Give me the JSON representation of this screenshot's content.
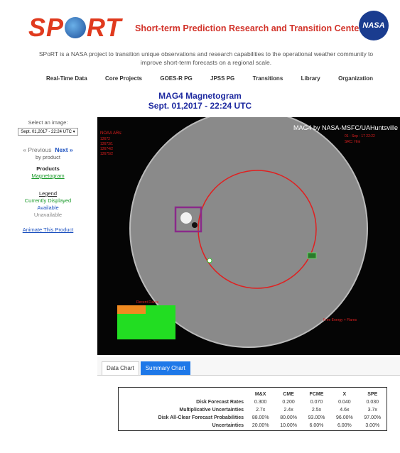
{
  "header": {
    "logo": [
      "SP",
      "RT"
    ],
    "center_name": "Short-term Prediction Research and Transition Center",
    "nasa": "NASA",
    "description": "SPoRT is a NASA project to transition unique observations and research capabilities to the operational weather community to improve short-term forecasts on a regional scale."
  },
  "nav": [
    "Real-Time Data",
    "Core Projects",
    "GOES-R PG",
    "JPSS PG",
    "Transitions",
    "Library",
    "Organization"
  ],
  "page": {
    "title": "MAG4 Magnetogram",
    "subtitle": "Sept. 01,2017 - 22:24 UTC"
  },
  "sidebar": {
    "select_label": "Select an image:",
    "selected": "Sept. 01,2017 - 22:24 UTC",
    "previous": "« Previous",
    "next": "Next »",
    "by_product": "by product",
    "products_heading": "Products",
    "product": "Magnetogram",
    "legend_heading": "Legend",
    "legend": [
      "Currently Displayed",
      "Available",
      "Unavailable"
    ],
    "animate": "Animate This Product"
  },
  "image": {
    "credit": "MAG4 by NASA-MSFC/UAHuntsville",
    "date": "01 - Sep - 17 22:22",
    "source": "SRC: Hmi",
    "ars_heading": "NOAA ARs:",
    "ars": [
      "12672",
      "12673/1",
      "12674/2",
      "12675/2"
    ],
    "inset_title": "Recent Flares",
    "flares_label": "Free Energy + Flares"
  },
  "tabs": [
    "Data Chart",
    "Summary Chart"
  ],
  "table": {
    "columns": [
      "M&X",
      "CME",
      "FCME",
      "X",
      "SPE"
    ],
    "rows": [
      {
        "label": "Disk Forecast Rates",
        "cells": [
          "0.300",
          "0.200",
          "0.070",
          "0.040",
          "0.030"
        ]
      },
      {
        "label": "Multiplicative Uncertainties",
        "cells": [
          "2.7x",
          "2.4x",
          "2.5x",
          "4.6x",
          "3.7x"
        ]
      },
      {
        "label": "Disk All-Clear Forecast Probabilities",
        "cells": [
          "88.00%",
          "80.00%",
          "93.00%",
          "96.00%",
          "97.00%"
        ]
      },
      {
        "label": "Uncertainties",
        "cells": [
          "20.00%",
          "10.00%",
          "6.00%",
          "6.00%",
          "3.00%"
        ]
      }
    ]
  }
}
